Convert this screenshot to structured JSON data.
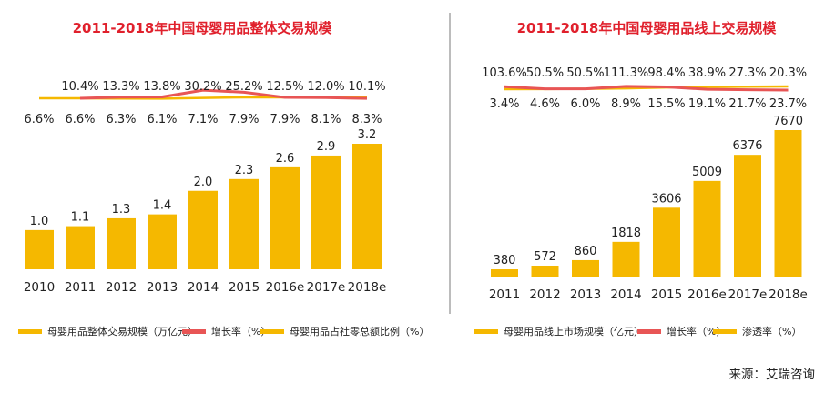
{
  "source": "来源：艾瑞咨询",
  "colors": {
    "bar": "#f5b800",
    "growth": "#e85555",
    "ratio": "#f5b800",
    "title": "#e0202c"
  },
  "chart_data": [
    {
      "type": "bar",
      "title": "2011-2018年中国母婴用品整体交易规模",
      "categories": [
        "2010",
        "2011",
        "2012",
        "2013",
        "2014",
        "2015",
        "2016e",
        "2017e",
        "2018e"
      ],
      "series": [
        {
          "name": "母婴用品整体交易规模（万亿元）",
          "type": "bar",
          "values": [
            1.0,
            1.1,
            1.3,
            1.4,
            2.0,
            2.3,
            2.6,
            2.9,
            3.2
          ],
          "labels": [
            "1.0",
            "1.1",
            "1.3",
            "1.4",
            "2.0",
            "2.3",
            "2.6",
            "2.9",
            "3.2"
          ]
        },
        {
          "name": "增长率（%）",
          "type": "line",
          "values": [
            null,
            10.4,
            13.3,
            13.8,
            30.2,
            25.2,
            12.5,
            12.0,
            10.1
          ],
          "labels": [
            "",
            "10.4%",
            "13.3%",
            "13.8%",
            "30.2%",
            "25.2%",
            "12.5%",
            "12.0%",
            "10.1%"
          ]
        },
        {
          "name": "母婴用品占社零总额比例（%）",
          "type": "line",
          "values": [
            6.6,
            6.6,
            6.3,
            6.1,
            7.1,
            7.9,
            7.9,
            8.1,
            8.3
          ],
          "labels": [
            "6.6%",
            "6.6%",
            "6.3%",
            "6.1%",
            "7.1%",
            "7.9%",
            "7.9%",
            "8.1%",
            "8.3%"
          ]
        }
      ]
    },
    {
      "type": "bar",
      "title": "2011-2018年中国母婴用品线上交易规模",
      "categories": [
        "2011",
        "2012",
        "2013",
        "2014",
        "2015",
        "2016e",
        "2017e",
        "2018e"
      ],
      "series": [
        {
          "name": "母婴用品线上市场规模（亿元）",
          "type": "bar",
          "values": [
            380,
            572,
            860,
            1818,
            3606,
            5009,
            6376,
            7670
          ],
          "labels": [
            "380",
            "572",
            "860",
            "1818",
            "3606",
            "5009",
            "6376",
            "7670"
          ]
        },
        {
          "name": "增长率（%）",
          "type": "line",
          "values": [
            103.6,
            50.5,
            50.5,
            111.3,
            98.4,
            38.9,
            27.3,
            20.3
          ],
          "labels": [
            "103.6%",
            "50.5%",
            "50.5%",
            "111.3%",
            "98.4%",
            "38.9%",
            "27.3%",
            "20.3%"
          ]
        },
        {
          "name": "渗透率（%）",
          "type": "line",
          "values": [
            3.4,
            4.6,
            6.0,
            8.9,
            15.5,
            19.1,
            21.7,
            23.7
          ],
          "labels": [
            "3.4%",
            "4.6%",
            "6.0%",
            "8.9%",
            "15.5%",
            "19.1%",
            "21.7%",
            "23.7%"
          ]
        }
      ]
    }
  ]
}
